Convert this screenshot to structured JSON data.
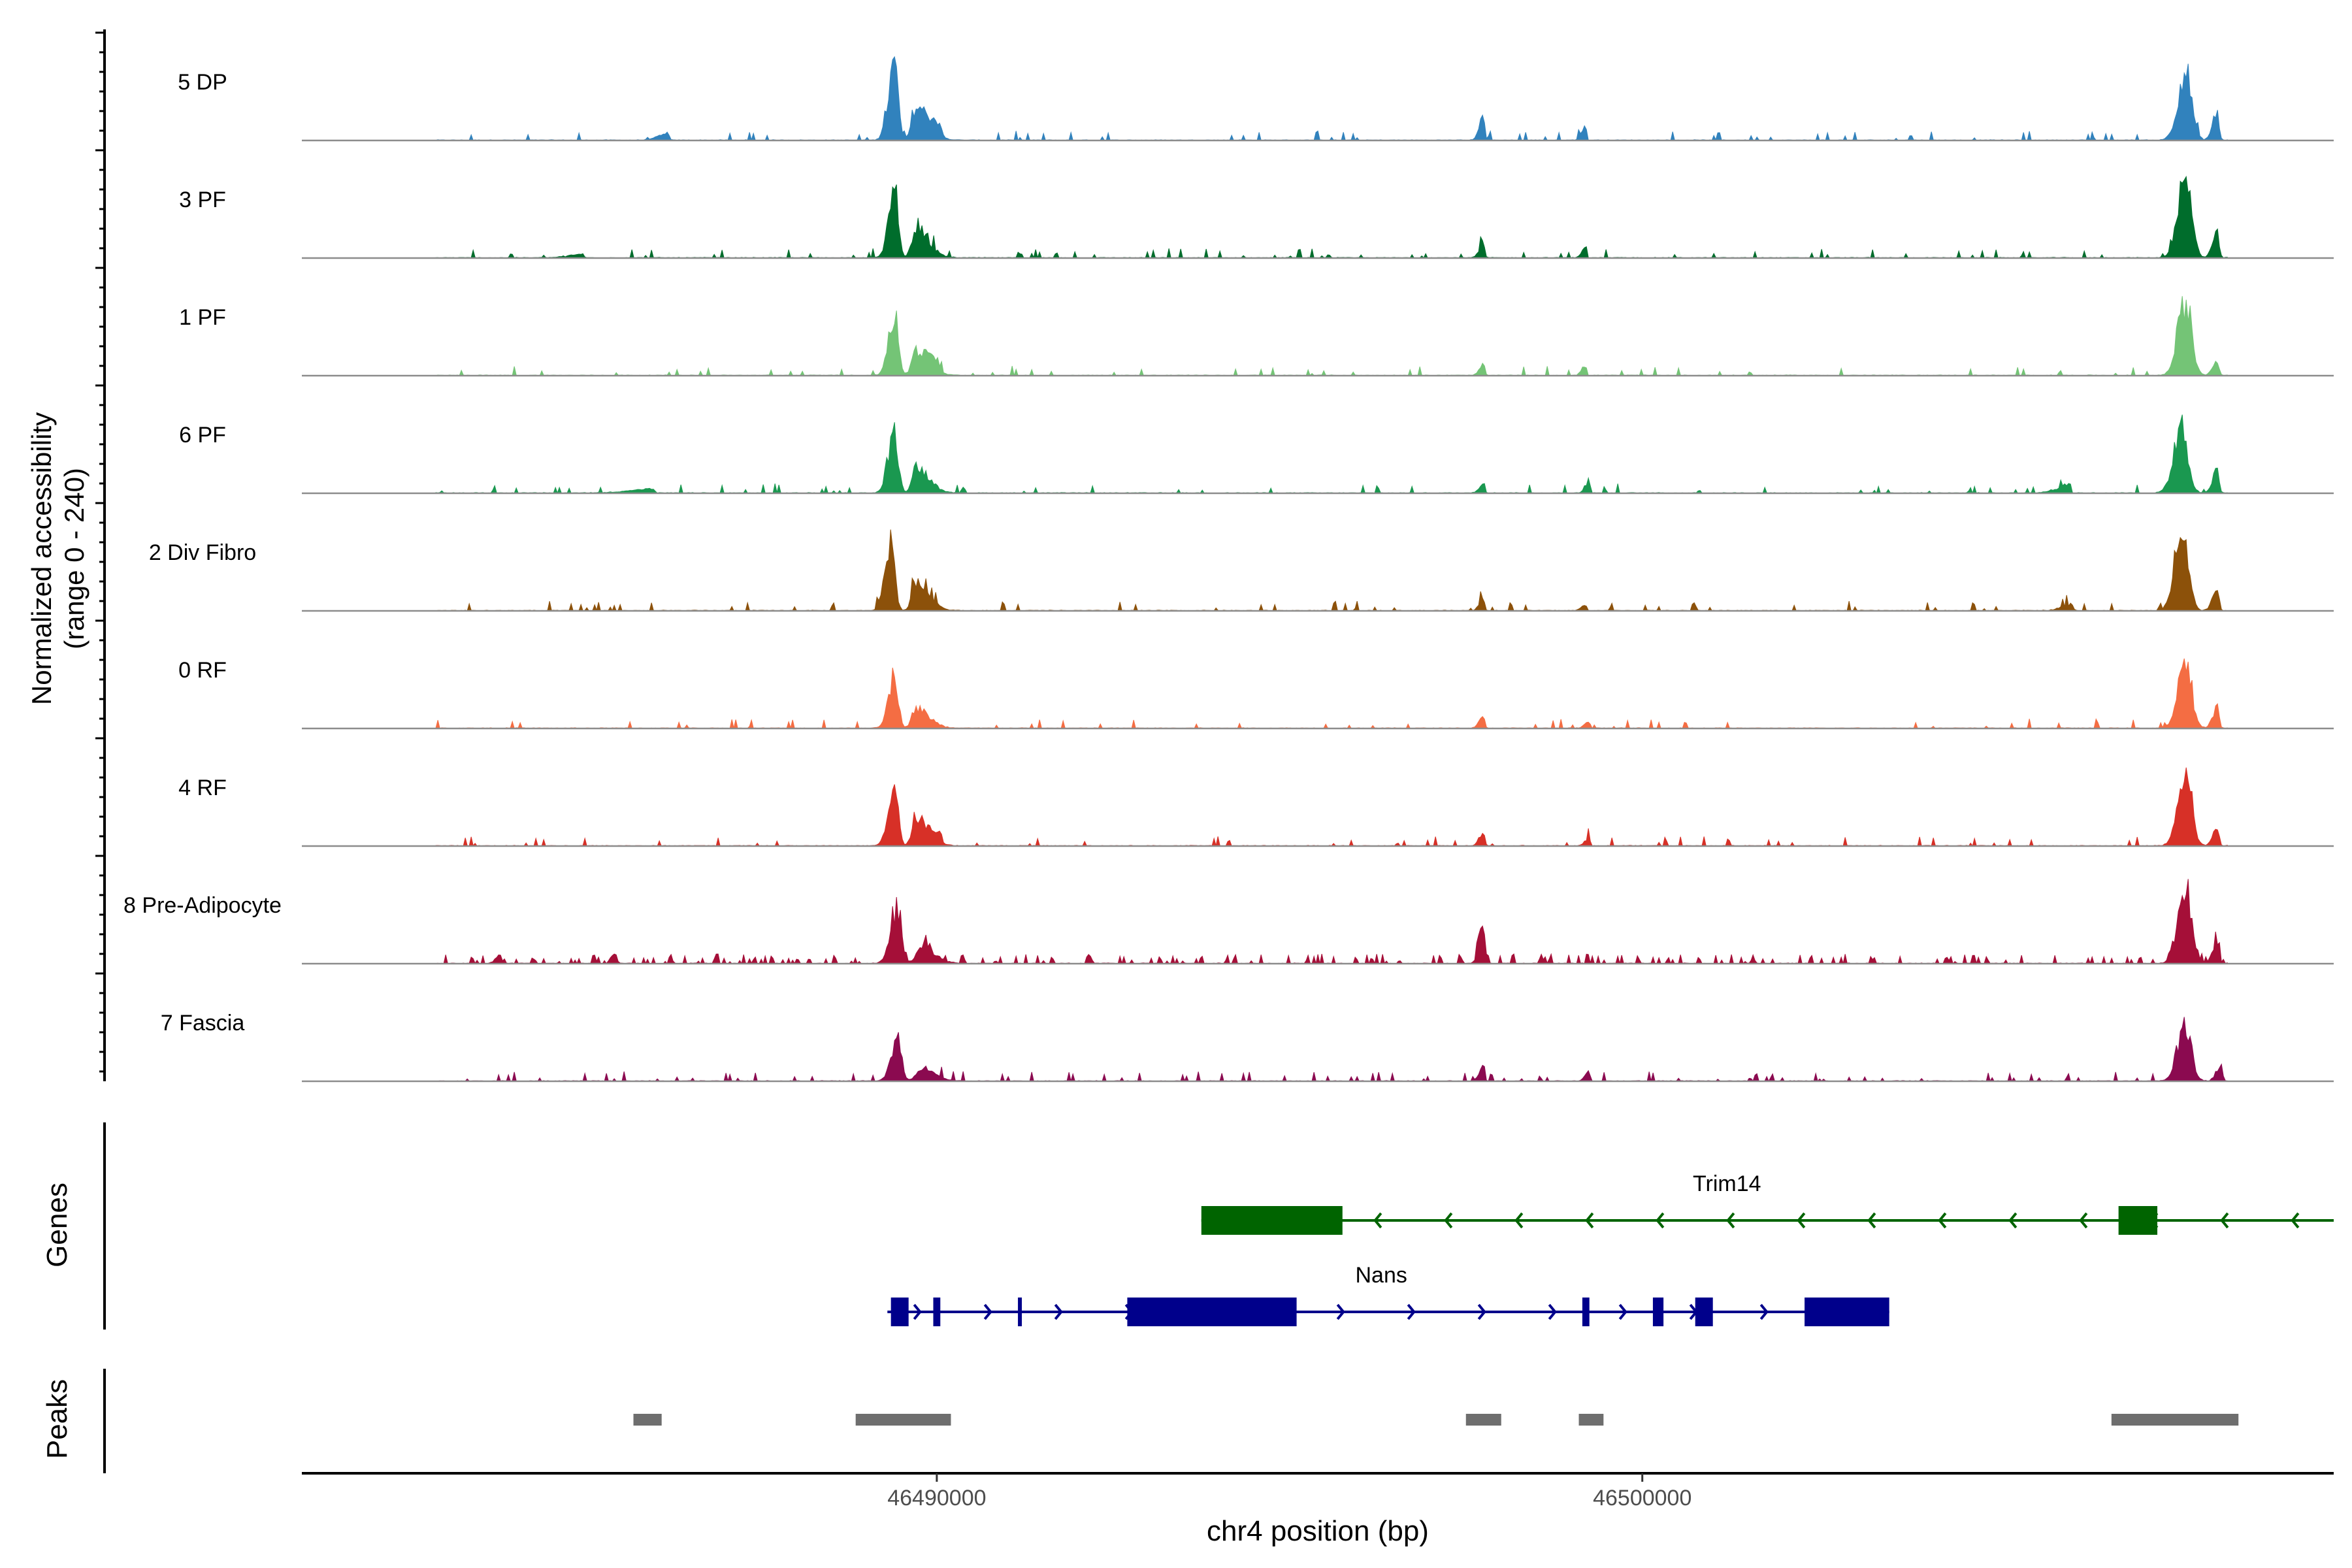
{
  "chart_data": {
    "type": "area",
    "title": "",
    "ylabel_line1": "Normalized accessibility",
    "ylabel_line2": "(range 0 - 240)",
    "xlabel": "chr4 position (bp)",
    "xlim": [
      46481000,
      46509800
    ],
    "ylim": [
      0,
      240
    ],
    "xticks": [
      46490000,
      46500000
    ],
    "xtick_labels": [
      "46490000",
      "46500000"
    ],
    "genes_label": "Genes",
    "peaks_label": "Peaks",
    "tracks": [
      {
        "name": "5 DP",
        "color": "#3182bd",
        "noise": 0.022,
        "peaks": [
          [
            46489400,
            120,
            75,
            230
          ],
          [
            46489700,
            80,
            260,
            100
          ],
          [
            46490050,
            180,
            30,
            35
          ],
          [
            46497750,
            80,
            25,
            80
          ],
          [
            46499200,
            80,
            15,
            45
          ],
          [
            46507700,
            150,
            120,
            210
          ],
          [
            46508150,
            90,
            35,
            85
          ],
          [
            46508500,
            90,
            35,
            90
          ],
          [
            46486200,
            200,
            20,
            20
          ]
        ]
      },
      {
        "name": "3 PF",
        "color": "#006d2c",
        "noise": 0.022,
        "peaks": [
          [
            46489400,
            120,
            75,
            190
          ],
          [
            46489700,
            80,
            260,
            85
          ],
          [
            46497750,
            80,
            25,
            45
          ],
          [
            46499200,
            80,
            15,
            35
          ],
          [
            46507700,
            150,
            120,
            230
          ],
          [
            46508150,
            90,
            35,
            90
          ],
          [
            46508500,
            90,
            35,
            95
          ],
          [
            46485000,
            300,
            10,
            10
          ]
        ]
      },
      {
        "name": "1 PF",
        "color": "#74c476",
        "noise": 0.02,
        "peaks": [
          [
            46489400,
            120,
            75,
            180
          ],
          [
            46489700,
            80,
            260,
            75
          ],
          [
            46490000,
            150,
            40,
            30
          ],
          [
            46497750,
            80,
            25,
            35
          ],
          [
            46499200,
            80,
            15,
            30
          ],
          [
            46507700,
            150,
            120,
            220
          ],
          [
            46508150,
            90,
            35,
            45
          ],
          [
            46508500,
            90,
            35,
            65
          ]
        ]
      },
      {
        "name": "6 PF",
        "color": "#1a9850",
        "noise": 0.025,
        "peaks": [
          [
            46489400,
            120,
            75,
            185
          ],
          [
            46489700,
            80,
            260,
            80
          ],
          [
            46497750,
            80,
            25,
            35
          ],
          [
            46499250,
            80,
            15,
            40
          ],
          [
            46507650,
            160,
            120,
            185
          ],
          [
            46508150,
            90,
            35,
            70
          ],
          [
            46508500,
            90,
            35,
            110
          ],
          [
            46506050,
            250,
            20,
            25
          ],
          [
            46486000,
            500,
            12,
            12
          ]
        ]
      },
      {
        "name": "2 Div Fibro",
        "color": "#8c510a",
        "noise": 0.02,
        "peaks": [
          [
            46489350,
            120,
            75,
            210
          ],
          [
            46489700,
            80,
            260,
            90
          ],
          [
            46497750,
            80,
            25,
            40
          ],
          [
            46499200,
            80,
            15,
            20
          ],
          [
            46507650,
            140,
            120,
            280
          ],
          [
            46508150,
            90,
            35,
            70
          ],
          [
            46508500,
            90,
            35,
            120
          ],
          [
            46506100,
            200,
            20,
            20
          ]
        ]
      },
      {
        "name": "0 RF",
        "color": "#f46d43",
        "noise": 0.015,
        "peaks": [
          [
            46489400,
            120,
            75,
            160
          ],
          [
            46489700,
            80,
            260,
            60
          ],
          [
            46497750,
            80,
            25,
            40
          ],
          [
            46499250,
            80,
            15,
            25
          ],
          [
            46507700,
            150,
            120,
            200
          ],
          [
            46508150,
            90,
            35,
            65
          ],
          [
            46508500,
            90,
            35,
            100
          ]
        ]
      },
      {
        "name": "4 RF",
        "color": "#d73027",
        "noise": 0.02,
        "peaks": [
          [
            46489400,
            120,
            75,
            180
          ],
          [
            46489700,
            80,
            260,
            75
          ],
          [
            46490050,
            180,
            30,
            30
          ],
          [
            46497750,
            80,
            25,
            45
          ],
          [
            46499250,
            80,
            15,
            25
          ],
          [
            46507700,
            150,
            120,
            215
          ],
          [
            46508150,
            90,
            35,
            50
          ],
          [
            46508500,
            90,
            35,
            115
          ]
        ]
      },
      {
        "name": "8 Pre-Adipocyte",
        "color": "#a50f38",
        "noise": 0.075,
        "peaks": [
          [
            46489450,
            140,
            75,
            165
          ],
          [
            46489800,
            120,
            250,
            50
          ],
          [
            46497750,
            80,
            25,
            140
          ],
          [
            46507700,
            150,
            120,
            225
          ],
          [
            46508150,
            90,
            35,
            70
          ],
          [
            46508500,
            90,
            35,
            145
          ],
          [
            46483800,
            80,
            20,
            25
          ]
        ]
      },
      {
        "name": "7 Fascia",
        "color": "#8b0a50",
        "noise": 0.03,
        "peaks": [
          [
            46489450,
            130,
            75,
            130
          ],
          [
            46489800,
            120,
            250,
            40
          ],
          [
            46497750,
            80,
            25,
            50
          ],
          [
            46499250,
            80,
            15,
            30
          ],
          [
            46507700,
            150,
            120,
            170
          ],
          [
            46508200,
            90,
            35,
            50
          ],
          [
            46508550,
            90,
            35,
            100
          ]
        ]
      }
    ],
    "genes": [
      {
        "name": "Trim14",
        "strand": "-",
        "color": "#006400",
        "start": 46493750,
        "end": 46509800,
        "exons": [
          [
            46493750,
            46495750
          ],
          [
            46506750,
            46507300
          ]
        ]
      },
      {
        "name": "Nans",
        "strand": "+",
        "color": "#00008b",
        "start": 46489300,
        "end": 46503500,
        "exons": [
          [
            46489350,
            46489600
          ],
          [
            46489950,
            46490050
          ],
          [
            46491150,
            46491200
          ],
          [
            46492700,
            46495100
          ],
          [
            46499150,
            46499250
          ],
          [
            46500150,
            46500300
          ],
          [
            46500750,
            46501000
          ],
          [
            46502300,
            46503500
          ]
        ]
      }
    ],
    "peaks": [
      [
        46485700,
        46486100
      ],
      [
        46488850,
        46490200
      ],
      [
        46497500,
        46498000
      ],
      [
        46499100,
        46499450
      ],
      [
        46506650,
        46508450
      ]
    ]
  }
}
